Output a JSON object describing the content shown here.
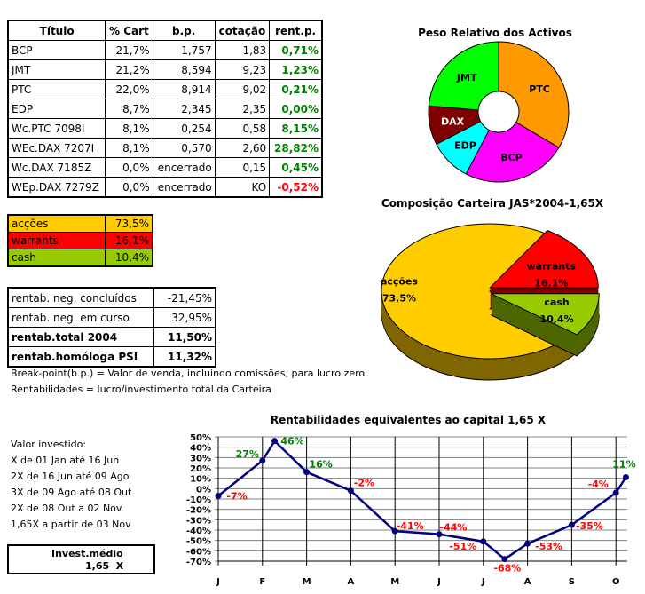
{
  "holdings": {
    "headers": [
      "Título",
      "% Cart",
      "b.p.",
      "cotação",
      "rent.p."
    ],
    "rows": [
      [
        "BCP",
        "21,7%",
        "1,757",
        "1,83",
        "0,71%"
      ],
      [
        "JMT",
        "21,2%",
        "8,594",
        "9,23",
        "1,23%"
      ],
      [
        "PTC",
        "22,0%",
        "8,914",
        "9,02",
        "0,21%"
      ],
      [
        "EDP",
        "8,7%",
        "2,345",
        "2,35",
        "0,00%"
      ],
      [
        "Wc.PTC 7098I",
        "8,1%",
        "0,254",
        "0,58",
        "8,15%"
      ],
      [
        "WEc.DAX 7207I",
        "8,1%",
        "0,570",
        "2,60",
        "28,82%"
      ],
      [
        "Wc.DAX 7185Z",
        "0,0%",
        "encerrado",
        "0,15",
        "0,45%"
      ],
      [
        "WEp.DAX 7279Z",
        "0,0%",
        "encerrado",
        "KO",
        "-0,52%"
      ]
    ]
  },
  "allocation": [
    {
      "label": "acções",
      "value": "73,5%",
      "color": "#ffcc00"
    },
    {
      "label": "warrants",
      "value": "16,1%",
      "color": "#ff0000"
    },
    {
      "label": "cash",
      "value": "10,4%",
      "color": "#99cc00"
    }
  ],
  "returns": [
    {
      "label": "rentab. neg. concluídos",
      "value": "-21,45%",
      "bold": false
    },
    {
      "label": "rentab. neg. em curso",
      "value": "32,95%",
      "bold": false
    },
    {
      "label": "rentab.total 2004",
      "value": "11,50%",
      "bold": true
    },
    {
      "label": "rentab.homóloga PSI",
      "value": "11,32%",
      "bold": true
    }
  ],
  "notes": [
    "Break-point(b.p.) = Valor de venda, incluindo comissões, para lucro zero.",
    "Rentabilidades = lucro/investimento total da Carteira"
  ],
  "investment": {
    "lines": [
      "Valor investido:",
      "X de 01 Jan até 16 Jun",
      "2X de 16 Jun até 09 Ago",
      "3X de 09 Ago até 08 Out",
      "2X de 08 Out a 02 Nov",
      "1,65X a partir de 03 Nov"
    ],
    "avg_label": "Invest.médio",
    "avg_value": "1,65  X"
  },
  "chart_data": [
    {
      "type": "pie",
      "variant": "donut",
      "title": "Peso Relativo dos Activos",
      "slices": [
        {
          "label": "PTC",
          "value": 30.1,
          "color": "#ff9900"
        },
        {
          "label": "BCP",
          "value": 21.7,
          "color": "#ff00ff"
        },
        {
          "label": "EDP",
          "value": 8.7,
          "color": "#00ffff"
        },
        {
          "label": "DAX",
          "value": 8.1,
          "color": "#800000"
        },
        {
          "label": "JMT",
          "value": 21.2,
          "color": "#00ff00"
        }
      ]
    },
    {
      "type": "pie",
      "variant": "3d-exploded",
      "title": "Composição Carteira JAS*2004-1,65X",
      "slices": [
        {
          "label": "warrants",
          "value": 16.1,
          "display": "16,1%",
          "color": "#ff0000",
          "side": "#800000"
        },
        {
          "label": "cash",
          "value": 10.4,
          "display": "10,4%",
          "color": "#99cc00",
          "side": "#4d6600"
        },
        {
          "label": "acções",
          "value": 73.5,
          "display": "73,5%",
          "color": "#ffcc00",
          "side": "#806600"
        }
      ]
    },
    {
      "type": "line",
      "title": "Rentabilidades equivalentes ao capital 1,65 X",
      "x_ticks": [
        "J",
        "F",
        "M",
        "A",
        "M",
        "J",
        "J",
        "A",
        "S",
        "O"
      ],
      "ylim": [
        -70,
        50
      ],
      "y_step": 10,
      "grid": true,
      "line_color": "#000080",
      "positive_label_color": "#008000",
      "negative_label_color": "#ff0000",
      "points": [
        {
          "date": "2004-01-01",
          "value": -7,
          "label": "-7%"
        },
        {
          "date": "2004-02-01",
          "value": 27,
          "label": "27%"
        },
        {
          "date": "2004-02-09",
          "value": 46,
          "label": "46%"
        },
        {
          "date": "2004-03-01",
          "value": 16,
          "label": "16%"
        },
        {
          "date": "2004-04-01",
          "value": -2,
          "label": "-2%"
        },
        {
          "date": "2004-05-01",
          "value": -41,
          "label": "-41%"
        },
        {
          "date": "2004-06-01",
          "value": -44,
          "label": "-44%"
        },
        {
          "date": "2004-07-01",
          "value": -51,
          "label": "-51%"
        },
        {
          "date": "2004-07-16",
          "value": -68,
          "label": "-68%"
        },
        {
          "date": "2004-08-01",
          "value": -53,
          "label": "-53%"
        },
        {
          "date": "2004-09-01",
          "value": -35,
          "label": "-35%"
        },
        {
          "date": "2004-10-01",
          "value": -4,
          "label": "-4%"
        },
        {
          "date": "2004-10-08",
          "value": 11,
          "label": "11%"
        }
      ]
    }
  ]
}
